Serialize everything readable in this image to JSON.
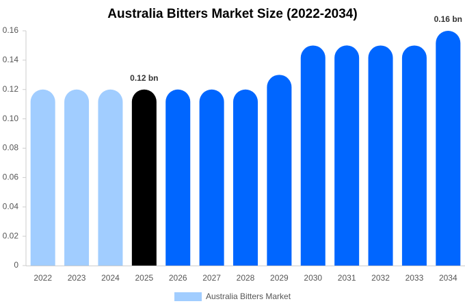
{
  "chart_data": {
    "type": "bar",
    "title": "Australia Bitters Market Size (2022-2034)",
    "categories": [
      "2022",
      "2023",
      "2024",
      "2025",
      "2026",
      "2027",
      "2028",
      "2029",
      "2030",
      "2031",
      "2032",
      "2033",
      "2034"
    ],
    "series": [
      {
        "name": "Australia Bitters Market",
        "color": "#a1cdff",
        "values": [
          0.12,
          0.12,
          0.12,
          0.12,
          0.12,
          0.12,
          0.12,
          0.13,
          0.15,
          0.15,
          0.15,
          0.15,
          0.16
        ],
        "colors": [
          "#a1cdff",
          "#a1cdff",
          "#a1cdff",
          "#000000",
          "#0066ff",
          "#0066ff",
          "#0066ff",
          "#0066ff",
          "#0066ff",
          "#0066ff",
          "#0066ff",
          "#0066ff",
          "#0066ff"
        ],
        "value_labels": [
          null,
          null,
          null,
          "0.12 bn",
          null,
          null,
          null,
          null,
          null,
          null,
          null,
          null,
          "0.16 bn"
        ]
      }
    ],
    "ylim": [
      0,
      0.16
    ],
    "yticks": [
      0,
      0.02,
      0.04,
      0.06,
      0.08,
      {
        "value": 0.1,
        "label": "0.10"
      },
      0.12,
      0.14,
      0.16
    ],
    "grid": false,
    "legend": "bottom"
  }
}
